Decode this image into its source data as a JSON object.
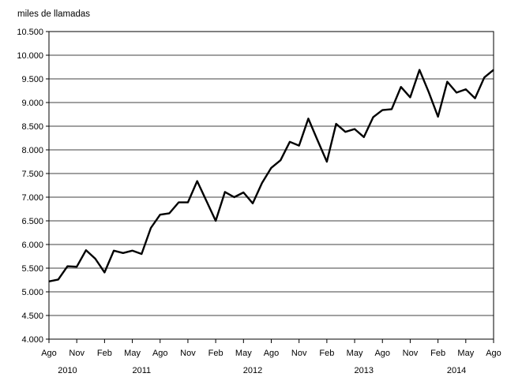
{
  "chart_data": {
    "type": "line",
    "title": "",
    "ylabel": "miles de llamadas",
    "xlabel": "",
    "ylim": [
      4000,
      10500
    ],
    "ytick_step": 500,
    "y_tick_labels": [
      "4.000",
      "4.500",
      "5.000",
      "5.500",
      "6.000",
      "6.500",
      "7.000",
      "7.500",
      "8.000",
      "8.500",
      "9.000",
      "9.500",
      "10.000",
      "10.500"
    ],
    "grid": "horizontal",
    "legend": "none",
    "line_color": "#000000",
    "x_month_labels": [
      "Ago",
      "Nov",
      "Feb",
      "May",
      "Ago",
      "Nov",
      "Feb",
      "May",
      "Ago",
      "Nov",
      "Feb",
      "May",
      "Ago",
      "Nov",
      "Feb",
      "May",
      "Ago"
    ],
    "x_year_labels": [
      {
        "label": "2010",
        "start": 0,
        "end": 4
      },
      {
        "label": "2011",
        "start": 4,
        "end": 16
      },
      {
        "label": "2012",
        "start": 16,
        "end": 28
      },
      {
        "label": "2013",
        "start": 28,
        "end": 40
      },
      {
        "label": "2014",
        "start": 40,
        "end": 48
      }
    ],
    "x": [
      "2010-08",
      "2010-09",
      "2010-10",
      "2010-11",
      "2010-12",
      "2011-01",
      "2011-02",
      "2011-03",
      "2011-04",
      "2011-05",
      "2011-06",
      "2011-07",
      "2011-08",
      "2011-09",
      "2011-10",
      "2011-11",
      "2011-12",
      "2012-01",
      "2012-02",
      "2012-03",
      "2012-04",
      "2012-05",
      "2012-06",
      "2012-07",
      "2012-08",
      "2012-09",
      "2012-10",
      "2012-11",
      "2012-12",
      "2013-01",
      "2013-02",
      "2013-03",
      "2013-04",
      "2013-05",
      "2013-06",
      "2013-07",
      "2013-08",
      "2013-09",
      "2013-10",
      "2013-11",
      "2013-12",
      "2014-01",
      "2014-02",
      "2014-03",
      "2014-04",
      "2014-05",
      "2014-06",
      "2014-07",
      "2014-08"
    ],
    "series": [
      {
        "values": [
          5220,
          5260,
          5540,
          5530,
          5880,
          5700,
          5410,
          5870,
          5820,
          5870,
          5800,
          6350,
          6630,
          6660,
          6890,
          6890,
          7340,
          6920,
          6500,
          7110,
          7000,
          7100,
          6870,
          7300,
          7620,
          7780,
          8170,
          8090,
          8660,
          8200,
          7750,
          8550,
          8380,
          8440,
          8270,
          8690,
          8840,
          8860,
          9330,
          9110,
          9690,
          9220,
          8700,
          9440,
          9210,
          9280,
          9090,
          9530,
          9690
        ]
      }
    ]
  }
}
